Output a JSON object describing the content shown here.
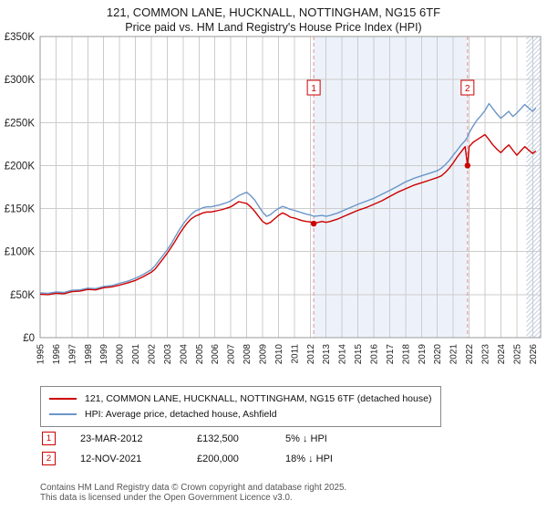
{
  "header": {
    "title": "121, COMMON LANE, HUCKNALL, NOTTINGHAM, NG15 6TF",
    "subtitle": "Price paid vs. HM Land Registry's House Price Index (HPI)"
  },
  "chart_data": {
    "type": "line",
    "units": "GBP",
    "x_range": [
      1995,
      2026.5
    ],
    "ylim": [
      0,
      350000
    ],
    "y_tick_step": 50000,
    "y_tick_labels": [
      "£0",
      "£50K",
      "£100K",
      "£150K",
      "£200K",
      "£250K",
      "£300K",
      "£350K"
    ],
    "x_ticks": [
      1995,
      1996,
      1997,
      1998,
      1999,
      2000,
      2001,
      2002,
      2003,
      2004,
      2005,
      2006,
      2007,
      2008,
      2009,
      2010,
      2011,
      2012,
      2013,
      2014,
      2015,
      2016,
      2017,
      2018,
      2019,
      2020,
      2021,
      2022,
      2023,
      2024,
      2025,
      2026
    ],
    "grid": true,
    "legend_position": "bottom",
    "shaded_span": {
      "from": 2012.22,
      "to": 2021.9
    },
    "hatched_span": {
      "from": 2025.6,
      "to": 2026.5
    },
    "x": [
      1995,
      1995.5,
      1996,
      1996.5,
      1997,
      1997.5,
      1998,
      1998.5,
      1999,
      1999.5,
      2000,
      2000.5,
      2001,
      2001.5,
      2002,
      2002.25,
      2002.5,
      2002.75,
      2003,
      2003.25,
      2003.5,
      2003.75,
      2004,
      2004.25,
      2004.5,
      2004.75,
      2005,
      2005.25,
      2005.5,
      2005.75,
      2006,
      2006.25,
      2006.5,
      2006.75,
      2007,
      2007.25,
      2007.5,
      2007.75,
      2008,
      2008.25,
      2008.5,
      2008.75,
      2009,
      2009.25,
      2009.5,
      2009.75,
      2010,
      2010.25,
      2010.5,
      2010.75,
      2011,
      2011.25,
      2011.5,
      2011.75,
      2012,
      2012.25,
      2012.5,
      2012.75,
      2013,
      2013.25,
      2013.5,
      2013.75,
      2014,
      2014.5,
      2015,
      2015.5,
      2016,
      2016.5,
      2017,
      2017.5,
      2018,
      2018.5,
      2019,
      2019.5,
      2020,
      2020.25,
      2020.5,
      2020.75,
      2021,
      2021.25,
      2021.5,
      2021.75,
      2021.9,
      2022,
      2022.25,
      2022.5,
      2022.75,
      2023,
      2023.25,
      2023.5,
      2023.75,
      2024,
      2024.25,
      2024.5,
      2024.75,
      2025,
      2025.25,
      2025.5,
      2025.75,
      2026,
      2026.2
    ],
    "series": [
      {
        "name": "121, COMMON LANE, HUCKNALL, NOTTINGHAM, NG15 6TF (detached house)",
        "color": "#cc0000",
        "values": [
          50500,
          50000,
          51500,
          51000,
          53500,
          54000,
          56000,
          55500,
          58000,
          59000,
          61000,
          63500,
          66500,
          71000,
          76000,
          80000,
          86000,
          92000,
          98000,
          105000,
          112000,
          120000,
          127000,
          133000,
          138000,
          141000,
          143000,
          145000,
          146000,
          146000,
          147000,
          148000,
          149000,
          150500,
          152000,
          155000,
          158000,
          157000,
          156000,
          152000,
          147000,
          141000,
          135000,
          132000,
          134000,
          138000,
          142000,
          145000,
          143000,
          140000,
          139000,
          137500,
          136000,
          135000,
          134500,
          133000,
          134000,
          135000,
          134000,
          135000,
          136500,
          138000,
          140000,
          144000,
          148000,
          151000,
          155000,
          159000,
          164000,
          169000,
          173000,
          177000,
          180000,
          183000,
          186000,
          188000,
          192000,
          197000,
          203000,
          210000,
          216000,
          222000,
          200000,
          222000,
          227000,
          230000,
          233000,
          236000,
          230000,
          224000,
          219000,
          215000,
          220000,
          224000,
          218000,
          212000,
          217000,
          222000,
          218000,
          214000,
          217000
        ]
      },
      {
        "name": "HPI: Average price, detached house, Ashfield",
        "color": "#6b96c8",
        "values": [
          52000,
          51500,
          53000,
          52500,
          55000,
          55500,
          57500,
          57000,
          59500,
          60500,
          63000,
          65500,
          69000,
          73500,
          79000,
          84000,
          90000,
          96000,
          102000,
          109000,
          117000,
          125000,
          132000,
          138000,
          143000,
          147000,
          149000,
          151000,
          152000,
          152000,
          153000,
          154000,
          155500,
          157000,
          159000,
          162000,
          165000,
          167000,
          169000,
          165000,
          160000,
          153000,
          146000,
          141000,
          143000,
          147000,
          150000,
          152500,
          151000,
          149000,
          148000,
          146500,
          145000,
          143500,
          142500,
          141000,
          141500,
          142000,
          141000,
          142000,
          143500,
          145000,
          147000,
          151000,
          155000,
          158500,
          162000,
          166500,
          171000,
          176000,
          181000,
          185000,
          188000,
          191000,
          194000,
          197000,
          201000,
          206000,
          212000,
          218000,
          224000,
          229000,
          233000,
          238000,
          246000,
          253000,
          258000,
          264000,
          272000,
          266000,
          260000,
          255000,
          259000,
          263000,
          257000,
          261000,
          266000,
          271000,
          267000,
          263000,
          267000
        ]
      }
    ],
    "markers": [
      {
        "label": "1",
        "x": 2012.22,
        "value": 132500
      },
      {
        "label": "2",
        "x": 2021.9,
        "value": 200000
      }
    ]
  },
  "legend": {
    "items": [
      {
        "label": "121, COMMON LANE, HUCKNALL, NOTTINGHAM, NG15 6TF (detached house)",
        "color": "#cc0000"
      },
      {
        "label": "HPI: Average price, detached house, Ashfield",
        "color": "#6b96c8"
      }
    ]
  },
  "transactions": [
    {
      "num": "1",
      "date": "23-MAR-2012",
      "price": "£132,500",
      "hpi_diff": "5% ↓ HPI"
    },
    {
      "num": "2",
      "date": "12-NOV-2021",
      "price": "£200,000",
      "hpi_diff": "18% ↓ HPI"
    }
  ],
  "footer": {
    "line1": "Contains HM Land Registry data © Crown copyright and database right 2025.",
    "line2": "This data is licensed under the Open Government Licence v3.0."
  }
}
